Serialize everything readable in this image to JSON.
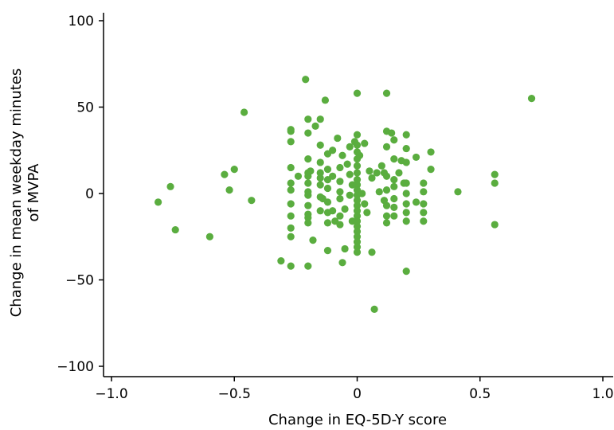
{
  "chart_data": {
    "type": "scatter",
    "xlabel": "Change in EQ-5D-Y score",
    "ylabel_lines": [
      "Change in mean weekday minutes",
      "of MVPA"
    ],
    "xlim": [
      -1.0,
      1.0
    ],
    "ylim": [
      -100,
      100
    ],
    "xticks": [
      -1.0,
      -0.5,
      0,
      0.5,
      1.0
    ],
    "xtick_labels": [
      "−1.0",
      "−0.5",
      "0",
      "0.5",
      "1.0"
    ],
    "yticks": [
      100,
      50,
      0,
      -50,
      -100
    ],
    "ytick_labels": [
      "100",
      "50",
      "0",
      "−50",
      "−100"
    ],
    "grid": false,
    "point_color": "#5aad3f",
    "points": [
      {
        "x": -0.81,
        "y": -5
      },
      {
        "x": -0.76,
        "y": 4
      },
      {
        "x": -0.74,
        "y": -21
      },
      {
        "x": -0.6,
        "y": -25
      },
      {
        "x": -0.54,
        "y": 11
      },
      {
        "x": -0.52,
        "y": 2
      },
      {
        "x": -0.5,
        "y": 14
      },
      {
        "x": -0.46,
        "y": 47
      },
      {
        "x": -0.43,
        "y": -4
      },
      {
        "x": -0.31,
        "y": -39
      },
      {
        "x": -0.27,
        "y": 36
      },
      {
        "x": -0.27,
        "y": 37
      },
      {
        "x": -0.27,
        "y": 30
      },
      {
        "x": -0.27,
        "y": 15
      },
      {
        "x": -0.27,
        "y": 6
      },
      {
        "x": -0.27,
        "y": 2
      },
      {
        "x": -0.27,
        "y": -6
      },
      {
        "x": -0.27,
        "y": -13
      },
      {
        "x": -0.27,
        "y": -20
      },
      {
        "x": -0.27,
        "y": -25
      },
      {
        "x": -0.27,
        "y": -42
      },
      {
        "x": -0.24,
        "y": 10
      },
      {
        "x": -0.21,
        "y": 66
      },
      {
        "x": -0.2,
        "y": 43
      },
      {
        "x": -0.2,
        "y": 35
      },
      {
        "x": -0.2,
        "y": 20
      },
      {
        "x": -0.2,
        "y": 12
      },
      {
        "x": -0.2,
        "y": 10
      },
      {
        "x": -0.2,
        "y": 6
      },
      {
        "x": -0.2,
        "y": 1
      },
      {
        "x": -0.2,
        "y": -1
      },
      {
        "x": -0.2,
        "y": -7
      },
      {
        "x": -0.2,
        "y": -12
      },
      {
        "x": -0.2,
        "y": -14
      },
      {
        "x": -0.2,
        "y": -17
      },
      {
        "x": -0.2,
        "y": -42
      },
      {
        "x": -0.19,
        "y": 13
      },
      {
        "x": -0.18,
        "y": -27
      },
      {
        "x": -0.17,
        "y": 39
      },
      {
        "x": -0.15,
        "y": 43
      },
      {
        "x": -0.15,
        "y": 28
      },
      {
        "x": -0.15,
        "y": 18
      },
      {
        "x": -0.15,
        "y": 12
      },
      {
        "x": -0.15,
        "y": 9
      },
      {
        "x": -0.15,
        "y": 5
      },
      {
        "x": -0.15,
        "y": -2
      },
      {
        "x": -0.15,
        "y": -10
      },
      {
        "x": -0.14,
        "y": -3
      },
      {
        "x": -0.13,
        "y": 54
      },
      {
        "x": -0.12,
        "y": 23
      },
      {
        "x": -0.12,
        "y": 14
      },
      {
        "x": -0.12,
        "y": 8
      },
      {
        "x": -0.12,
        "y": 3
      },
      {
        "x": -0.12,
        "y": -5
      },
      {
        "x": -0.12,
        "y": -11
      },
      {
        "x": -0.12,
        "y": -17
      },
      {
        "x": -0.12,
        "y": -33
      },
      {
        "x": -0.1,
        "y": 25
      },
      {
        "x": -0.1,
        "y": 10
      },
      {
        "x": -0.1,
        "y": -10
      },
      {
        "x": -0.09,
        "y": -16
      },
      {
        "x": -0.08,
        "y": 32
      },
      {
        "x": -0.07,
        "y": 15
      },
      {
        "x": -0.07,
        "y": 7
      },
      {
        "x": -0.07,
        "y": 1
      },
      {
        "x": -0.07,
        "y": -3
      },
      {
        "x": -0.07,
        "y": -13
      },
      {
        "x": -0.07,
        "y": -18
      },
      {
        "x": -0.06,
        "y": -40
      },
      {
        "x": -0.06,
        "y": 22
      },
      {
        "x": -0.05,
        "y": -32
      },
      {
        "x": -0.05,
        "y": -9
      },
      {
        "x": -0.04,
        "y": 17
      },
      {
        "x": -0.03,
        "y": 27
      },
      {
        "x": -0.03,
        "y": 11
      },
      {
        "x": -0.03,
        "y": -1
      },
      {
        "x": -0.02,
        "y": 5
      },
      {
        "x": -0.02,
        "y": -16
      },
      {
        "x": -0.01,
        "y": 30
      },
      {
        "x": 0.0,
        "y": 58
      },
      {
        "x": 0.0,
        "y": 34
      },
      {
        "x": 0.0,
        "y": 28
      },
      {
        "x": 0.0,
        "y": 24
      },
      {
        "x": 0.0,
        "y": 20
      },
      {
        "x": 0.0,
        "y": 16
      },
      {
        "x": 0.0,
        "y": 12
      },
      {
        "x": 0.0,
        "y": 8
      },
      {
        "x": 0.0,
        "y": 5
      },
      {
        "x": 0.0,
        "y": 2
      },
      {
        "x": 0.0,
        "y": -1
      },
      {
        "x": 0.0,
        "y": -4
      },
      {
        "x": 0.0,
        "y": -7
      },
      {
        "x": 0.0,
        "y": -10
      },
      {
        "x": 0.0,
        "y": -13
      },
      {
        "x": 0.0,
        "y": -16
      },
      {
        "x": 0.0,
        "y": -19
      },
      {
        "x": 0.0,
        "y": -22
      },
      {
        "x": 0.0,
        "y": -25
      },
      {
        "x": 0.0,
        "y": -28
      },
      {
        "x": 0.0,
        "y": -31
      },
      {
        "x": 0.0,
        "y": -34
      },
      {
        "x": 0.01,
        "y": 22
      },
      {
        "x": 0.02,
        "y": 0
      },
      {
        "x": 0.03,
        "y": 29
      },
      {
        "x": 0.03,
        "y": -6
      },
      {
        "x": 0.04,
        "y": -11
      },
      {
        "x": 0.05,
        "y": 13
      },
      {
        "x": 0.06,
        "y": 9
      },
      {
        "x": 0.06,
        "y": -34
      },
      {
        "x": 0.07,
        "y": -67
      },
      {
        "x": 0.08,
        "y": 12
      },
      {
        "x": 0.09,
        "y": 1
      },
      {
        "x": 0.1,
        "y": 16
      },
      {
        "x": 0.11,
        "y": 12
      },
      {
        "x": 0.11,
        "y": -4
      },
      {
        "x": 0.12,
        "y": 58
      },
      {
        "x": 0.12,
        "y": 36
      },
      {
        "x": 0.12,
        "y": 27
      },
      {
        "x": 0.12,
        "y": 10
      },
      {
        "x": 0.12,
        "y": 2
      },
      {
        "x": 0.12,
        "y": -7
      },
      {
        "x": 0.12,
        "y": -13
      },
      {
        "x": 0.12,
        "y": -17
      },
      {
        "x": 0.14,
        "y": 35
      },
      {
        "x": 0.15,
        "y": 31
      },
      {
        "x": 0.15,
        "y": 20
      },
      {
        "x": 0.15,
        "y": 8
      },
      {
        "x": 0.15,
        "y": 4
      },
      {
        "x": 0.15,
        "y": -3
      },
      {
        "x": 0.15,
        "y": -8
      },
      {
        "x": 0.15,
        "y": -13
      },
      {
        "x": 0.17,
        "y": 12
      },
      {
        "x": 0.18,
        "y": 19
      },
      {
        "x": 0.19,
        "y": 6
      },
      {
        "x": 0.2,
        "y": 34
      },
      {
        "x": 0.2,
        "y": 26
      },
      {
        "x": 0.2,
        "y": 18
      },
      {
        "x": 0.2,
        "y": 6
      },
      {
        "x": 0.2,
        "y": 0
      },
      {
        "x": 0.2,
        "y": -6
      },
      {
        "x": 0.2,
        "y": -11
      },
      {
        "x": 0.2,
        "y": -16
      },
      {
        "x": 0.2,
        "y": -45
      },
      {
        "x": 0.24,
        "y": 21
      },
      {
        "x": 0.24,
        "y": -5
      },
      {
        "x": 0.27,
        "y": 6
      },
      {
        "x": 0.27,
        "y": 1
      },
      {
        "x": 0.27,
        "y": -6
      },
      {
        "x": 0.27,
        "y": -11
      },
      {
        "x": 0.27,
        "y": -16
      },
      {
        "x": 0.3,
        "y": 24
      },
      {
        "x": 0.3,
        "y": 14
      },
      {
        "x": 0.41,
        "y": 1
      },
      {
        "x": 0.56,
        "y": 11
      },
      {
        "x": 0.56,
        "y": 6
      },
      {
        "x": 0.56,
        "y": -18
      },
      {
        "x": 0.71,
        "y": 55
      }
    ]
  }
}
